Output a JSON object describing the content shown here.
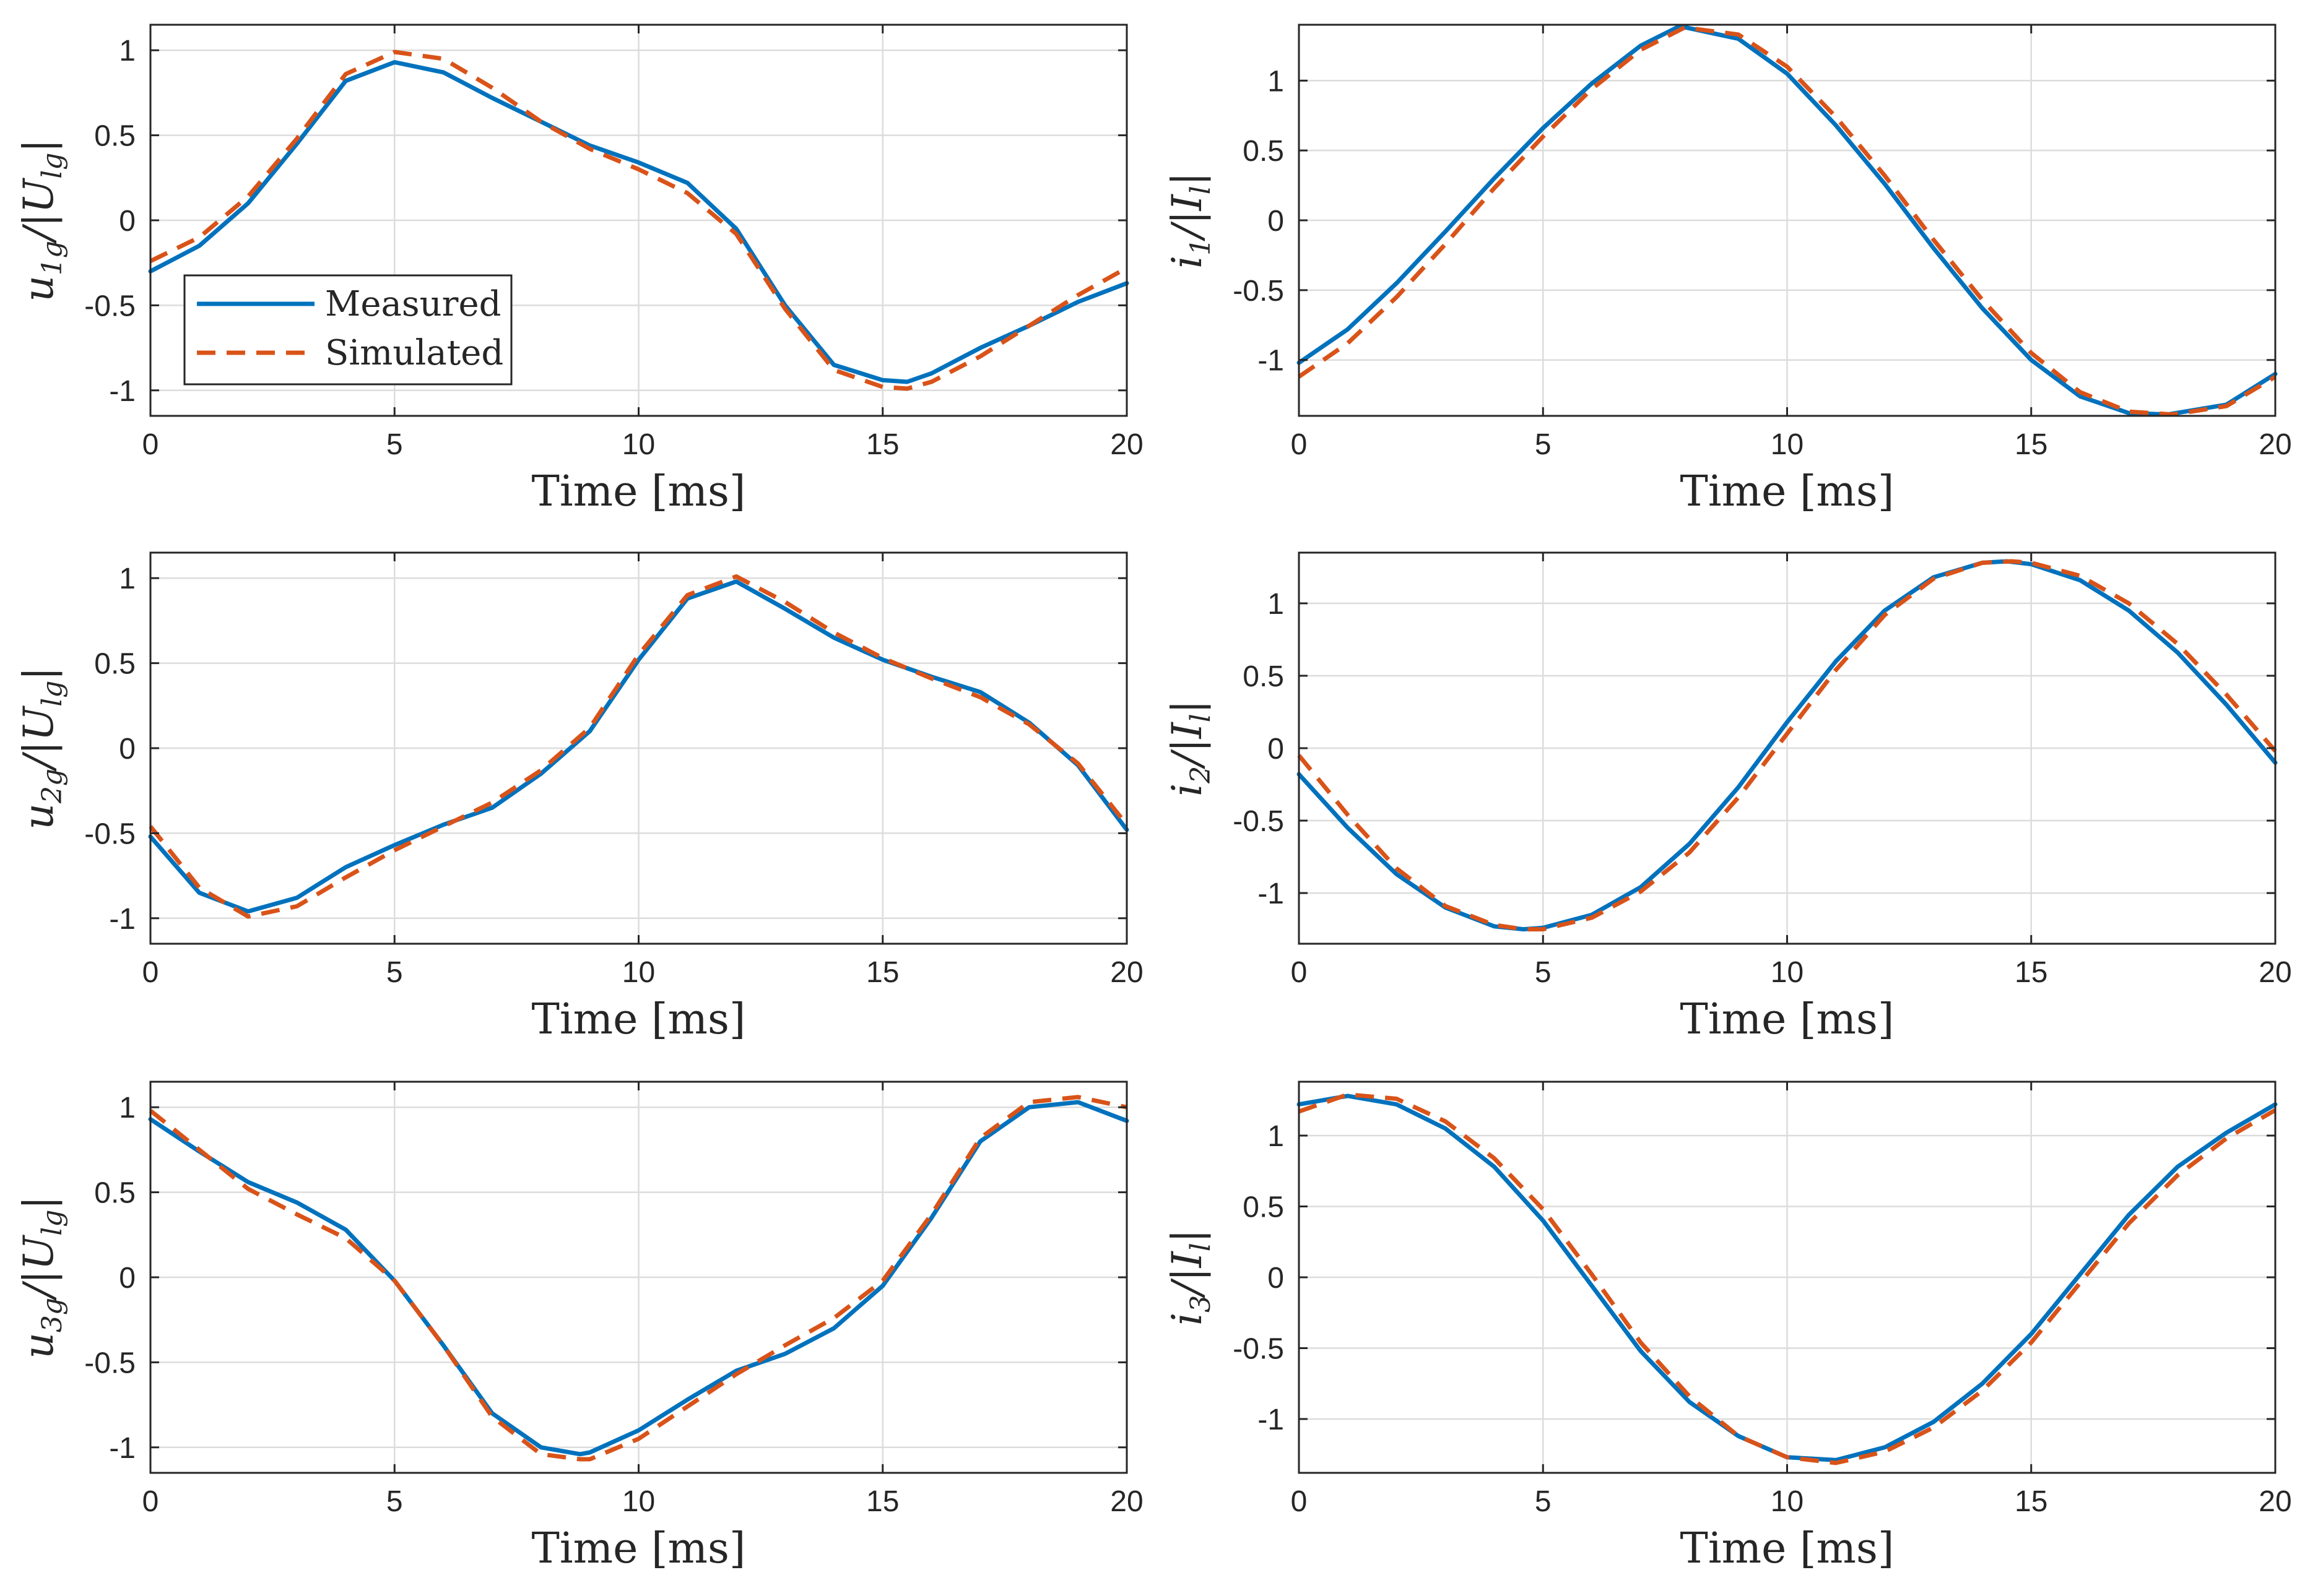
{
  "figure": {
    "legend": {
      "location": "bottom-left of top-left panel",
      "entries": [
        "Measured",
        "Simulated"
      ]
    },
    "colors": {
      "measured": "#0072BD",
      "simulated": "#D95319",
      "grid": "#dcdcdc",
      "axes": "#262626"
    }
  },
  "chart_data": [
    {
      "id": "u1g",
      "type": "line",
      "title": "",
      "xlabel": "Time [ms]",
      "ylabel": {
        "main": "u",
        "sub": "1g",
        "mid": "/|U",
        "sub2": "lg",
        "end": "|"
      },
      "xlim": [
        0,
        20
      ],
      "ylim": [
        -1.15,
        1.15
      ],
      "xticks": [
        0,
        5,
        10,
        15,
        20
      ],
      "yticks": [
        -1,
        -0.5,
        0,
        0.5,
        1
      ],
      "ytick_labels": [
        "-1",
        "-0.5",
        "0",
        "0.5",
        "1"
      ],
      "series": [
        {
          "name": "Measured",
          "x": [
            0,
            1,
            2,
            3,
            4,
            5,
            6,
            7,
            8,
            9,
            10,
            11,
            12,
            13,
            14,
            15,
            15.5,
            16,
            17,
            18,
            19,
            20
          ],
          "y": [
            -0.3,
            -0.15,
            0.1,
            0.45,
            0.82,
            0.93,
            0.87,
            0.72,
            0.58,
            0.44,
            0.34,
            0.22,
            -0.05,
            -0.5,
            -0.85,
            -0.94,
            -0.95,
            -0.9,
            -0.75,
            -0.62,
            -0.48,
            -0.37
          ]
        },
        {
          "name": "Simulated",
          "x": [
            0,
            1,
            2,
            3,
            4,
            5,
            6,
            7,
            8,
            9,
            10,
            11,
            12,
            13,
            14,
            15,
            15.5,
            16,
            17,
            18,
            19,
            20
          ],
          "y": [
            -0.24,
            -0.1,
            0.14,
            0.48,
            0.86,
            0.99,
            0.95,
            0.78,
            0.58,
            0.42,
            0.3,
            0.16,
            -0.08,
            -0.52,
            -0.88,
            -0.98,
            -0.99,
            -0.95,
            -0.8,
            -0.62,
            -0.44,
            -0.28
          ]
        }
      ]
    },
    {
      "id": "i1",
      "type": "line",
      "title": "",
      "xlabel": "Time [ms]",
      "ylabel": {
        "main": "i",
        "sub": "1",
        "mid": "/|I",
        "sub2": "l",
        "end": "|"
      },
      "xlim": [
        0,
        20
      ],
      "ylim": [
        -1.4,
        1.4
      ],
      "xticks": [
        0,
        5,
        10,
        15,
        20
      ],
      "yticks": [
        -1,
        -0.5,
        0,
        0.5,
        1
      ],
      "ytick_labels": [
        "-1",
        "-0.5",
        "0",
        "0.5",
        "1"
      ],
      "series": [
        {
          "name": "Measured",
          "x": [
            0,
            1,
            2,
            3,
            4,
            5,
            6,
            7,
            7.8,
            9,
            10,
            11,
            12,
            13,
            14,
            15,
            16,
            17,
            17.8,
            19,
            20
          ],
          "y": [
            -1.02,
            -0.78,
            -0.45,
            -0.08,
            0.3,
            0.66,
            0.98,
            1.25,
            1.39,
            1.3,
            1.05,
            0.68,
            0.26,
            -0.2,
            -0.63,
            -1.0,
            -1.26,
            -1.38,
            -1.39,
            -1.32,
            -1.1
          ]
        },
        {
          "name": "Simulated",
          "x": [
            0,
            1,
            2,
            3,
            4,
            5,
            6,
            7,
            7.9,
            9,
            10,
            11,
            12,
            13,
            14,
            15,
            16,
            17,
            17.9,
            19,
            20
          ],
          "y": [
            -1.12,
            -0.88,
            -0.55,
            -0.17,
            0.23,
            0.6,
            0.94,
            1.22,
            1.38,
            1.33,
            1.1,
            0.74,
            0.32,
            -0.14,
            -0.57,
            -0.95,
            -1.23,
            -1.37,
            -1.39,
            -1.33,
            -1.12
          ]
        }
      ]
    },
    {
      "id": "u2g",
      "type": "line",
      "title": "",
      "xlabel": "Time [ms]",
      "ylabel": {
        "main": "u",
        "sub": "2g",
        "mid": "/|U",
        "sub2": "lg",
        "end": "|"
      },
      "xlim": [
        0,
        20
      ],
      "ylim": [
        -1.15,
        1.15
      ],
      "xticks": [
        0,
        5,
        10,
        15,
        20
      ],
      "yticks": [
        -1,
        -0.5,
        0,
        0.5,
        1
      ],
      "ytick_labels": [
        "-1",
        "-0.5",
        "0",
        "0.5",
        "1"
      ],
      "series": [
        {
          "name": "Measured",
          "x": [
            0,
            1,
            2,
            3,
            4,
            5,
            6,
            7,
            8,
            9,
            10,
            11,
            12,
            13,
            14,
            15,
            16,
            17,
            18,
            19,
            20
          ],
          "y": [
            -0.52,
            -0.85,
            -0.96,
            -0.88,
            -0.7,
            -0.57,
            -0.45,
            -0.35,
            -0.15,
            0.1,
            0.52,
            0.88,
            0.98,
            0.82,
            0.65,
            0.52,
            0.42,
            0.33,
            0.15,
            -0.1,
            -0.48
          ]
        },
        {
          "name": "Simulated",
          "x": [
            0,
            1,
            2,
            3,
            4,
            5,
            6,
            7,
            8,
            9,
            10,
            11,
            12,
            13,
            14,
            15,
            16,
            17,
            18,
            19,
            20
          ],
          "y": [
            -0.46,
            -0.82,
            -0.99,
            -0.93,
            -0.76,
            -0.6,
            -0.46,
            -0.32,
            -0.13,
            0.12,
            0.55,
            0.9,
            1.01,
            0.86,
            0.68,
            0.53,
            0.41,
            0.3,
            0.14,
            -0.09,
            -0.45
          ]
        }
      ]
    },
    {
      "id": "i2",
      "type": "line",
      "title": "",
      "xlabel": "Time [ms]",
      "ylabel": {
        "main": "i",
        "sub": "2",
        "mid": "/|I",
        "sub2": "l",
        "end": "|"
      },
      "xlim": [
        0,
        20
      ],
      "ylim": [
        -1.35,
        1.35
      ],
      "xticks": [
        0,
        5,
        10,
        15,
        20
      ],
      "yticks": [
        -1,
        -0.5,
        0,
        0.5,
        1
      ],
      "ytick_labels": [
        "-1",
        "-0.5",
        "0",
        "0.5",
        "1"
      ],
      "series": [
        {
          "name": "Measured",
          "x": [
            0,
            1,
            2,
            3,
            4,
            4.6,
            5,
            6,
            7,
            8,
            9,
            10,
            11,
            12,
            13,
            14,
            14.5,
            15,
            16,
            17,
            18,
            19,
            20
          ],
          "y": [
            -0.18,
            -0.55,
            -0.87,
            -1.1,
            -1.23,
            -1.25,
            -1.24,
            -1.15,
            -0.96,
            -0.66,
            -0.27,
            0.18,
            0.6,
            0.95,
            1.18,
            1.28,
            1.29,
            1.27,
            1.16,
            0.95,
            0.66,
            0.3,
            -0.1
          ]
        },
        {
          "name": "Simulated",
          "x": [
            0,
            1,
            2,
            3,
            4,
            4.6,
            5,
            6,
            7,
            8,
            9,
            10,
            11,
            12,
            13,
            14,
            14.6,
            15,
            16,
            17,
            18,
            19,
            20
          ],
          "y": [
            -0.05,
            -0.46,
            -0.83,
            -1.09,
            -1.22,
            -1.25,
            -1.25,
            -1.17,
            -0.99,
            -0.72,
            -0.34,
            0.1,
            0.54,
            0.92,
            1.17,
            1.28,
            1.29,
            1.28,
            1.19,
            1.0,
            0.72,
            0.37,
            -0.02
          ]
        }
      ]
    },
    {
      "id": "u3g",
      "type": "line",
      "title": "",
      "xlabel": "Time [ms]",
      "ylabel": {
        "main": "u",
        "sub": "3g",
        "mid": "/|U",
        "sub2": "lg",
        "end": "|"
      },
      "xlim": [
        0,
        20
      ],
      "ylim": [
        -1.15,
        1.15
      ],
      "xticks": [
        0,
        5,
        10,
        15,
        20
      ],
      "yticks": [
        -1,
        -0.5,
        0,
        0.5,
        1
      ],
      "ytick_labels": [
        "-1",
        "-0.5",
        "0",
        "0.5",
        "1"
      ],
      "series": [
        {
          "name": "Measured",
          "x": [
            0,
            1,
            2,
            3,
            4,
            5,
            6,
            7,
            8,
            8.8,
            9,
            10,
            11,
            12,
            13,
            14,
            15,
            16,
            17,
            18,
            19,
            20
          ],
          "y": [
            0.93,
            0.74,
            0.56,
            0.44,
            0.28,
            -0.02,
            -0.4,
            -0.8,
            -1.0,
            -1.04,
            -1.03,
            -0.9,
            -0.72,
            -0.55,
            -0.45,
            -0.3,
            -0.05,
            0.35,
            0.8,
            1.0,
            1.03,
            0.92
          ]
        },
        {
          "name": "Simulated",
          "x": [
            0,
            1,
            2,
            3,
            4,
            5,
            6,
            7,
            8,
            8.8,
            9,
            10,
            11,
            12,
            13,
            14,
            15,
            16,
            17,
            18,
            19,
            20
          ],
          "y": [
            0.98,
            0.75,
            0.52,
            0.37,
            0.23,
            -0.02,
            -0.4,
            -0.82,
            -1.04,
            -1.07,
            -1.07,
            -0.95,
            -0.76,
            -0.57,
            -0.4,
            -0.24,
            -0.02,
            0.37,
            0.82,
            1.03,
            1.06,
            1.0
          ]
        }
      ]
    },
    {
      "id": "i3",
      "type": "line",
      "title": "",
      "xlabel": "Time [ms]",
      "ylabel": {
        "main": "i",
        "sub": "3",
        "mid": "/|I",
        "sub2": "l",
        "end": "|"
      },
      "xlim": [
        0,
        20
      ],
      "ylim": [
        -1.38,
        1.38
      ],
      "xticks": [
        0,
        5,
        10,
        15,
        20
      ],
      "yticks": [
        -1,
        -0.5,
        0,
        0.5,
        1
      ],
      "ytick_labels": [
        "-1",
        "-0.5",
        "0",
        "0.5",
        "1"
      ],
      "series": [
        {
          "name": "Measured",
          "x": [
            0,
            1,
            2,
            3,
            4,
            5,
            6,
            7,
            8,
            9,
            10,
            11,
            12,
            13,
            14,
            15,
            16,
            17,
            18,
            19,
            20
          ],
          "y": [
            1.22,
            1.28,
            1.22,
            1.05,
            0.78,
            0.4,
            -0.06,
            -0.52,
            -0.88,
            -1.12,
            -1.27,
            -1.29,
            -1.2,
            -1.02,
            -0.75,
            -0.4,
            0.02,
            0.44,
            0.78,
            1.02,
            1.22
          ]
        },
        {
          "name": "Simulated",
          "x": [
            0,
            1,
            2,
            3,
            4,
            5,
            6,
            7,
            8,
            9,
            10,
            11,
            12,
            13,
            14,
            15,
            16,
            17,
            18,
            19,
            20
          ],
          "y": [
            1.17,
            1.29,
            1.26,
            1.1,
            0.84,
            0.48,
            0.02,
            -0.46,
            -0.84,
            -1.12,
            -1.27,
            -1.31,
            -1.23,
            -1.06,
            -0.8,
            -0.46,
            -0.04,
            0.38,
            0.72,
            0.98,
            1.18
          ]
        }
      ]
    }
  ]
}
